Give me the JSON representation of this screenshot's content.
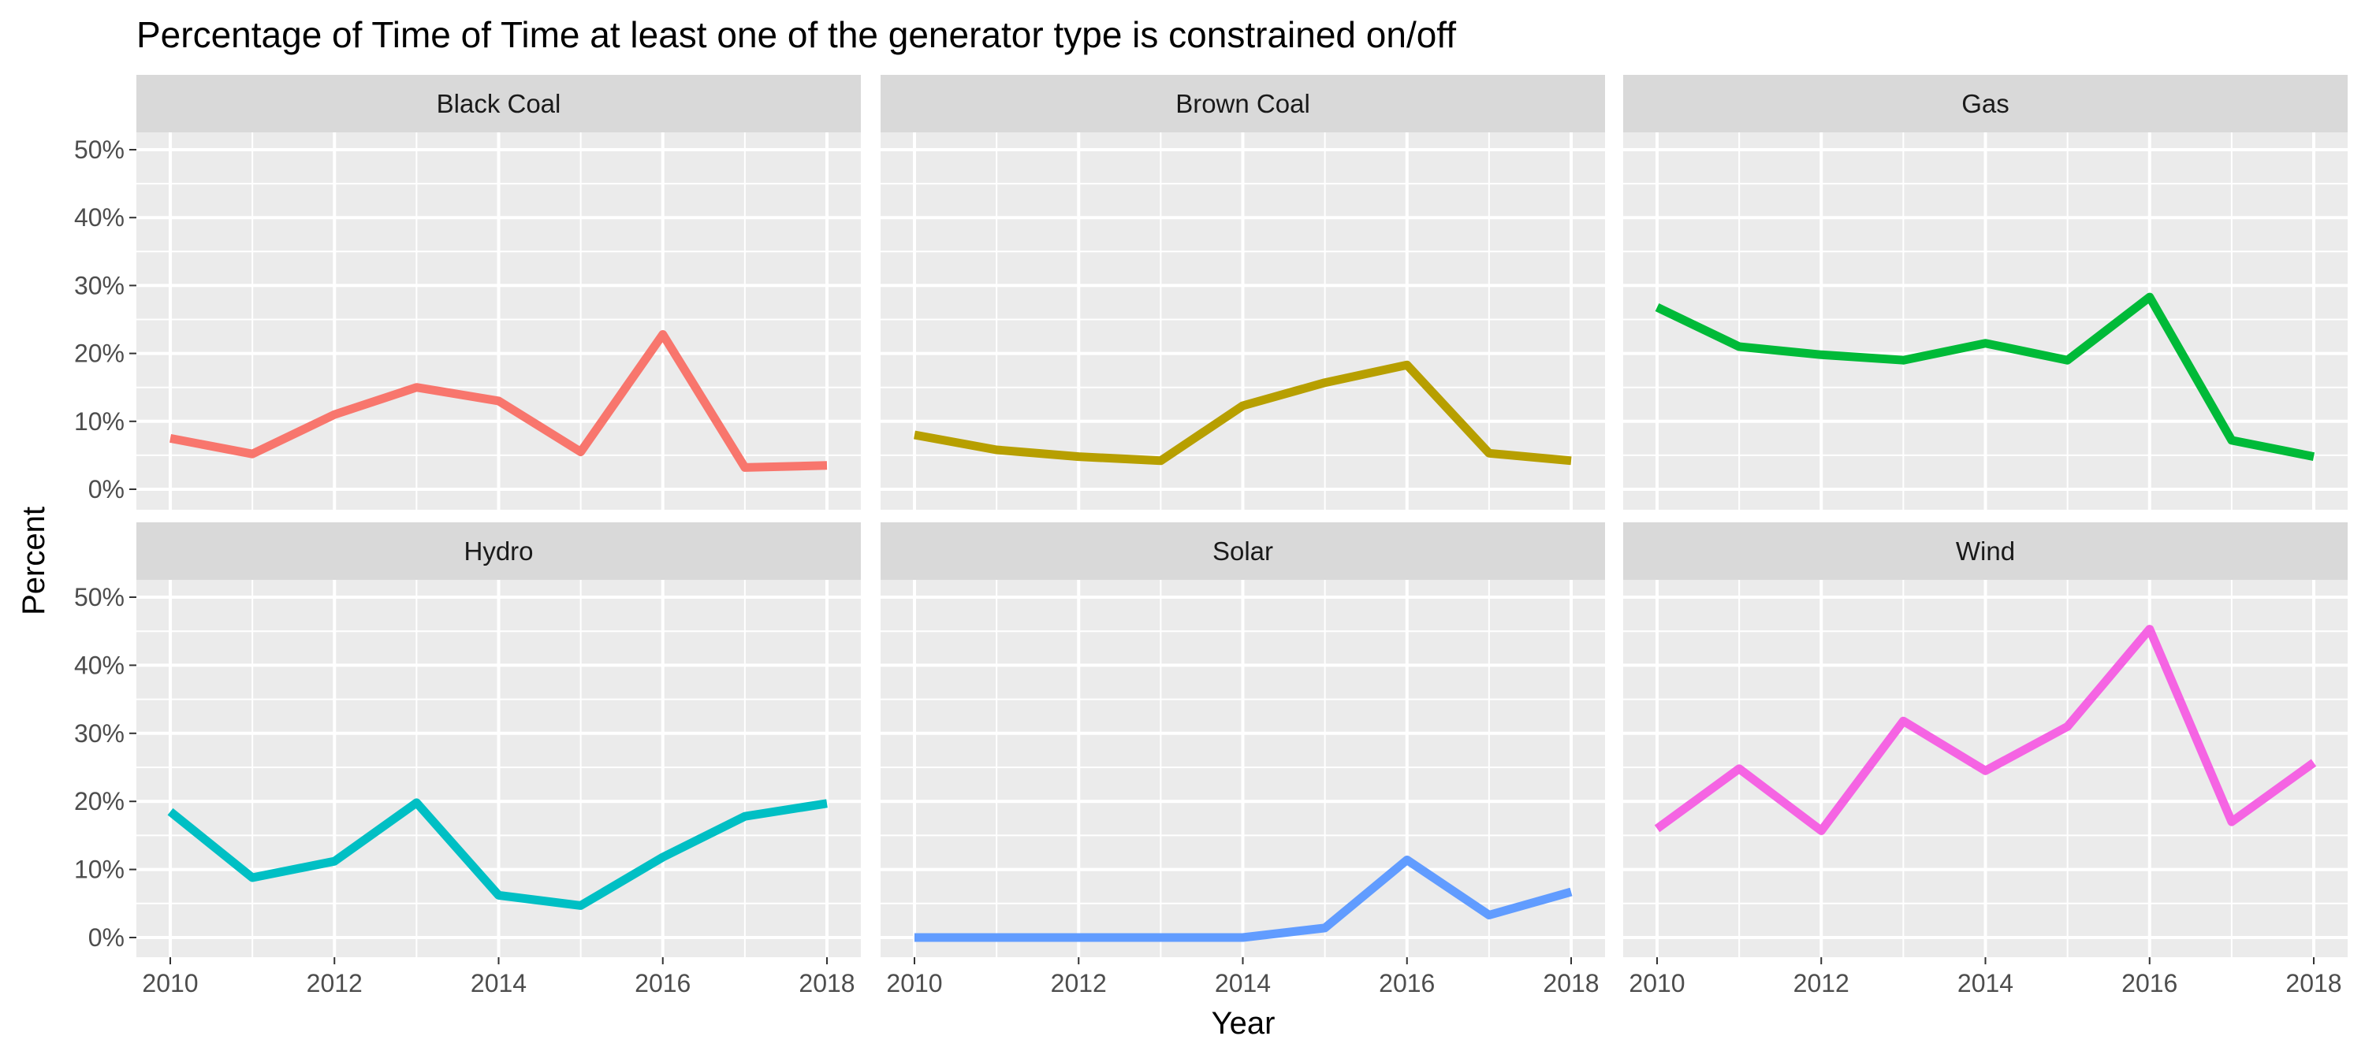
{
  "chart_data": {
    "type": "line",
    "title": "Percentage of Time of Time at least one of the generator type is constrained on/off",
    "xlabel": "Year",
    "ylabel": "Percent",
    "xlim": [
      2010,
      2018
    ],
    "ylim": [
      0,
      50
    ],
    "x_ticks": [
      2010,
      2012,
      2014,
      2016,
      2018
    ],
    "x_tick_labels": [
      "2010",
      "2012",
      "2014",
      "2016",
      "2018"
    ],
    "y_ticks": [
      0,
      10,
      20,
      30,
      40,
      50
    ],
    "y_tick_labels": [
      "0%",
      "10%",
      "20%",
      "30%",
      "40%",
      "50%"
    ],
    "grid": true,
    "legend": "none",
    "facet_layout": {
      "rows": 2,
      "cols": 3
    },
    "x": [
      2010,
      2011,
      2012,
      2013,
      2014,
      2015,
      2016,
      2017,
      2018
    ],
    "series": [
      {
        "name": "Black Coal",
        "color": "#F8766D",
        "values": [
          7.5,
          5.2,
          11.0,
          15.0,
          13.0,
          5.5,
          22.8,
          3.2,
          3.5
        ]
      },
      {
        "name": "Brown Coal",
        "color": "#B79F00",
        "values": [
          8.0,
          5.8,
          4.8,
          4.2,
          12.3,
          15.7,
          18.3,
          5.3,
          4.2
        ]
      },
      {
        "name": "Gas",
        "color": "#00BA38",
        "values": [
          26.8,
          21.0,
          19.8,
          19.0,
          21.5,
          19.0,
          28.3,
          7.2,
          4.8
        ]
      },
      {
        "name": "Hydro",
        "color": "#00BFC4",
        "values": [
          18.5,
          8.8,
          11.2,
          19.8,
          6.2,
          4.7,
          11.8,
          17.8,
          19.7
        ]
      },
      {
        "name": "Solar",
        "color": "#619CFF",
        "values": [
          0,
          0,
          0,
          0,
          0,
          1.4,
          11.4,
          3.3,
          6.7
        ]
      },
      {
        "name": "Wind",
        "color": "#F564E3",
        "values": [
          16.0,
          24.8,
          15.7,
          31.8,
          24.5,
          31.0,
          45.3,
          17.0,
          25.7
        ]
      }
    ]
  }
}
